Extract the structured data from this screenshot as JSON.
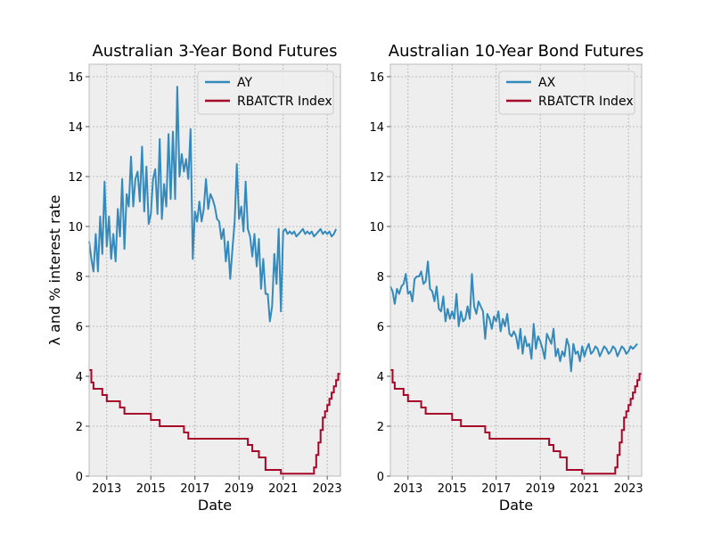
{
  "shared": {
    "ylabel": "λ and % interest rate",
    "xlabel": "Date",
    "ylim": [
      0,
      16.5
    ],
    "xlim": [
      2012.2,
      2023.6
    ],
    "yticks": [
      0,
      2,
      4,
      6,
      8,
      10,
      12,
      14,
      16
    ],
    "xticks": [
      2013,
      2015,
      2017,
      2019,
      2021,
      2023
    ],
    "grid": true,
    "legend": "top-right",
    "colors": {
      "ay_ax": "#348abd",
      "rba": "#a60628",
      "panel_bg": "#eeeeee",
      "grid": "#b0b0b0"
    }
  },
  "chart_data": [
    {
      "type": "line",
      "title": "Australian 3-Year Bond Futures",
      "series": [
        {
          "name": "AY",
          "color": "#348abd",
          "x": [
            2012.2,
            2012.3,
            2012.4,
            2012.5,
            2012.6,
            2012.7,
            2012.8,
            2012.9,
            2013.0,
            2013.1,
            2013.2,
            2013.3,
            2013.4,
            2013.5,
            2013.6,
            2013.7,
            2013.8,
            2013.9,
            2014.0,
            2014.1,
            2014.2,
            2014.3,
            2014.4,
            2014.5,
            2014.6,
            2014.7,
            2014.8,
            2014.9,
            2015.0,
            2015.1,
            2015.2,
            2015.3,
            2015.4,
            2015.5,
            2015.6,
            2015.7,
            2015.8,
            2015.9,
            2016.0,
            2016.1,
            2016.2,
            2016.3,
            2016.4,
            2016.5,
            2016.6,
            2016.7,
            2016.8,
            2016.9,
            2017.0,
            2017.1,
            2017.2,
            2017.3,
            2017.4,
            2017.5,
            2017.6,
            2017.7,
            2017.8,
            2017.9,
            2018.0,
            2018.1,
            2018.2,
            2018.3,
            2018.4,
            2018.5,
            2018.6,
            2018.7,
            2018.8,
            2018.9,
            2019.0,
            2019.1,
            2019.2,
            2019.3,
            2019.4,
            2019.5,
            2019.6,
            2019.7,
            2019.8,
            2019.9,
            2020.0,
            2020.1,
            2020.2,
            2020.3,
            2020.4,
            2020.5,
            2020.6,
            2020.7,
            2020.8,
            2020.9,
            2021.0,
            2021.1,
            2021.2,
            2021.3,
            2021.4,
            2021.5,
            2021.6,
            2021.7,
            2021.8,
            2021.9,
            2022.0,
            2022.1,
            2022.2,
            2022.3,
            2022.4,
            2022.5,
            2022.6,
            2022.7,
            2022.8,
            2022.9,
            2023.0,
            2023.1,
            2023.2,
            2023.3,
            2023.4
          ],
          "values": [
            9.4,
            8.7,
            8.2,
            9.7,
            8.2,
            10.4,
            8.9,
            11.8,
            9.2,
            10.4,
            8.7,
            9.7,
            8.6,
            10.7,
            9.6,
            11.9,
            9.1,
            11.3,
            10.8,
            12.8,
            10.8,
            11.9,
            12.2,
            11.0,
            13.2,
            10.6,
            12.4,
            10.1,
            10.5,
            11.9,
            12.3,
            10.5,
            13.5,
            10.3,
            11.7,
            10.8,
            13.7,
            11.1,
            13.8,
            11.1,
            15.6,
            12.0,
            12.9,
            12.2,
            12.7,
            11.9,
            13.9,
            8.7,
            10.6,
            10.2,
            11.0,
            10.2,
            10.7,
            11.9,
            10.7,
            11.3,
            11.1,
            10.8,
            10.3,
            10.2,
            9.5,
            9.9,
            8.6,
            9.4,
            7.9,
            9.1,
            10.2,
            12.5,
            10.3,
            10.8,
            9.8,
            11.8,
            9.9,
            9.6,
            8.8,
            9.7,
            8.4,
            9.5,
            7.5,
            8.7,
            7.3,
            7.3,
            6.2,
            6.8,
            8.9,
            7.7,
            9.9,
            6.6,
            9.8,
            9.9,
            9.7,
            9.8,
            9.7,
            9.8,
            9.6,
            9.7,
            9.8,
            9.9,
            9.7,
            9.8,
            9.7,
            9.8,
            9.6,
            9.7,
            9.8,
            9.9,
            9.7,
            9.8,
            9.7,
            9.8,
            9.6,
            9.7,
            9.9
          ]
        },
        {
          "name": "RBATCTR Index",
          "color": "#a60628",
          "x": [
            2012.2,
            2012.3,
            2012.4,
            2012.6,
            2012.8,
            2013.0,
            2013.3,
            2013.6,
            2013.8,
            2015.0,
            2015.4,
            2016.5,
            2016.7,
            2019.4,
            2019.6,
            2019.9,
            2020.2,
            2020.8,
            2020.9,
            2022.3,
            2022.4,
            2022.5,
            2022.6,
            2022.7,
            2022.8,
            2022.9,
            2023.0,
            2023.1,
            2023.2,
            2023.3,
            2023.4,
            2023.5,
            2023.6
          ],
          "values": [
            4.25,
            3.75,
            3.5,
            3.5,
            3.25,
            3.0,
            3.0,
            2.75,
            2.5,
            2.25,
            2.0,
            1.75,
            1.5,
            1.25,
            1.0,
            0.75,
            0.25,
            0.25,
            0.1,
            0.1,
            0.35,
            0.85,
            1.35,
            1.85,
            2.35,
            2.6,
            2.85,
            3.1,
            3.35,
            3.6,
            3.85,
            4.1,
            4.1
          ]
        }
      ]
    },
    {
      "type": "line",
      "title": "Australian 10-Year Bond Futures",
      "series": [
        {
          "name": "AX",
          "color": "#348abd",
          "x": [
            2012.2,
            2012.3,
            2012.4,
            2012.5,
            2012.6,
            2012.7,
            2012.8,
            2012.9,
            2013.0,
            2013.1,
            2013.2,
            2013.3,
            2013.4,
            2013.5,
            2013.6,
            2013.7,
            2013.8,
            2013.9,
            2014.0,
            2014.1,
            2014.2,
            2014.3,
            2014.4,
            2014.5,
            2014.6,
            2014.7,
            2014.8,
            2014.9,
            2015.0,
            2015.1,
            2015.2,
            2015.3,
            2015.4,
            2015.5,
            2015.6,
            2015.7,
            2015.8,
            2015.9,
            2016.0,
            2016.1,
            2016.2,
            2016.3,
            2016.4,
            2016.5,
            2016.6,
            2016.7,
            2016.8,
            2016.9,
            2017.0,
            2017.1,
            2017.2,
            2017.3,
            2017.4,
            2017.5,
            2017.6,
            2017.7,
            2017.8,
            2017.9,
            2018.0,
            2018.1,
            2018.2,
            2018.3,
            2018.4,
            2018.5,
            2018.6,
            2018.7,
            2018.8,
            2018.9,
            2019.0,
            2019.1,
            2019.2,
            2019.3,
            2019.4,
            2019.5,
            2019.6,
            2019.7,
            2019.8,
            2019.9,
            2020.0,
            2020.1,
            2020.2,
            2020.3,
            2020.4,
            2020.5,
            2020.6,
            2020.7,
            2020.8,
            2020.9,
            2021.0,
            2021.1,
            2021.2,
            2021.3,
            2021.4,
            2021.5,
            2021.6,
            2021.7,
            2021.8,
            2021.9,
            2022.0,
            2022.1,
            2022.2,
            2022.3,
            2022.4,
            2022.5,
            2022.6,
            2022.7,
            2022.8,
            2022.9,
            2023.0,
            2023.1,
            2023.2,
            2023.3,
            2023.4
          ],
          "values": [
            7.6,
            7.4,
            6.9,
            7.5,
            7.3,
            7.6,
            7.7,
            8.1,
            7.3,
            7.4,
            7.0,
            7.9,
            8.0,
            8.0,
            8.2,
            7.7,
            7.8,
            8.6,
            7.5,
            7.4,
            7.0,
            7.6,
            6.7,
            6.6,
            7.2,
            6.2,
            6.7,
            6.3,
            6.6,
            6.3,
            7.3,
            6.0,
            6.6,
            6.2,
            6.3,
            6.8,
            6.3,
            8.1,
            6.8,
            6.5,
            7.0,
            6.8,
            6.6,
            5.5,
            6.5,
            6.3,
            5.9,
            6.4,
            6.2,
            6.6,
            5.8,
            6.3,
            6.0,
            6.5,
            5.7,
            5.6,
            5.8,
            5.6,
            5.1,
            5.9,
            4.9,
            5.6,
            5.2,
            5.3,
            4.7,
            6.1,
            5.1,
            5.6,
            5.4,
            5.1,
            4.7,
            5.7,
            5.5,
            5.3,
            5.9,
            4.8,
            5.1,
            4.6,
            5.0,
            4.8,
            5.5,
            5.2,
            4.2,
            5.3,
            4.9,
            5.0,
            4.6,
            5.2,
            4.8,
            5.1,
            5.3,
            4.9,
            5.0,
            5.2,
            5.1,
            4.8,
            5.0,
            5.2,
            5.1,
            4.9,
            5.0,
            5.2,
            5.1,
            4.8,
            5.0,
            5.2,
            5.1,
            4.9,
            5.0,
            5.2,
            5.1,
            5.2,
            5.3
          ]
        },
        {
          "name": "RBATCTR Index",
          "color": "#a60628",
          "x": [
            2012.2,
            2012.3,
            2012.4,
            2012.6,
            2012.8,
            2013.0,
            2013.3,
            2013.6,
            2013.8,
            2015.0,
            2015.4,
            2016.5,
            2016.7,
            2019.4,
            2019.6,
            2019.9,
            2020.2,
            2020.8,
            2020.9,
            2022.3,
            2022.4,
            2022.5,
            2022.6,
            2022.7,
            2022.8,
            2022.9,
            2023.0,
            2023.1,
            2023.2,
            2023.3,
            2023.4,
            2023.5,
            2023.6
          ],
          "values": [
            4.25,
            3.75,
            3.5,
            3.5,
            3.25,
            3.0,
            3.0,
            2.75,
            2.5,
            2.25,
            2.0,
            1.75,
            1.5,
            1.25,
            1.0,
            0.75,
            0.25,
            0.25,
            0.1,
            0.1,
            0.35,
            0.85,
            1.35,
            1.85,
            2.35,
            2.6,
            2.85,
            3.1,
            3.35,
            3.6,
            3.85,
            4.1,
            4.1
          ]
        }
      ]
    }
  ]
}
